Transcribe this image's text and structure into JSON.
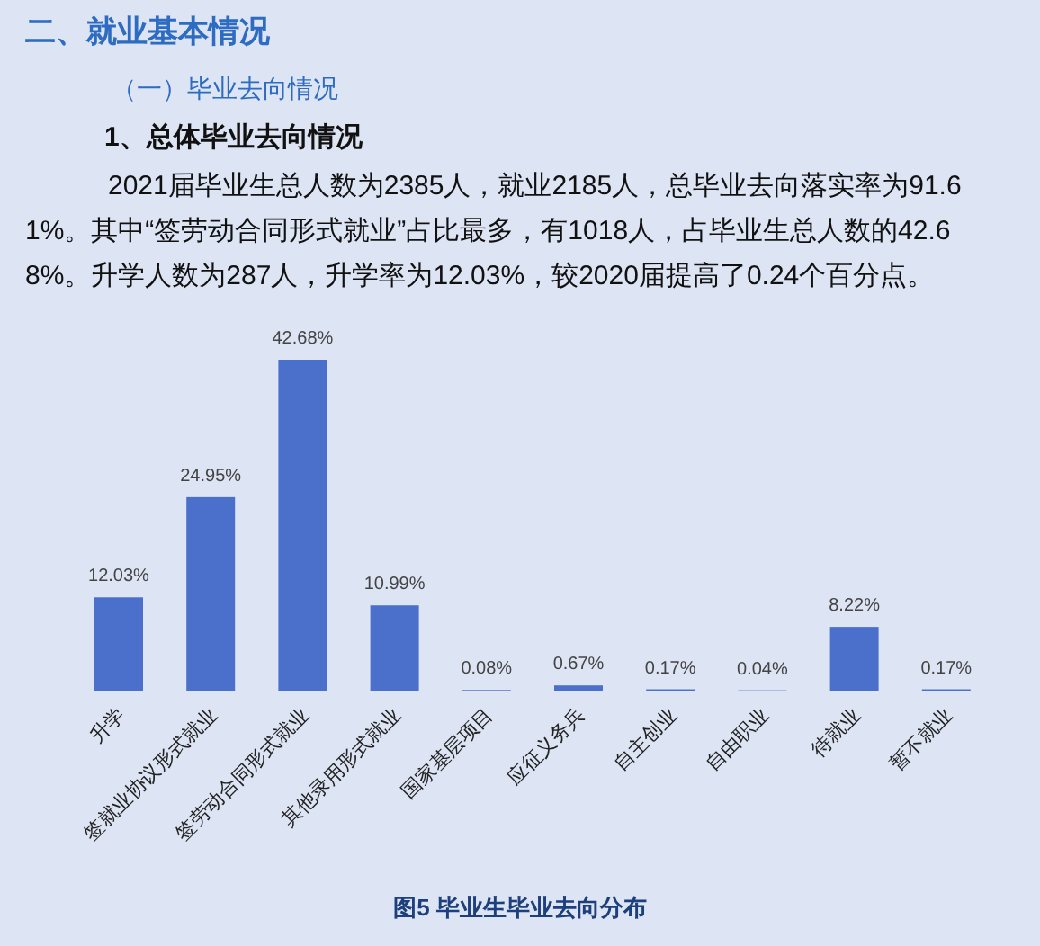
{
  "chart_data": {
    "type": "bar",
    "title": "二、就业基本情况",
    "subtitle": "（一）毕业去向情况",
    "annotations": [
      "1、总体毕业去向情况",
      "2021届毕业生总人数为2385人，就业2185人，总毕业去向落实率为91.61%。其中“签劳动合同形式就业”占比最多，有1018人，占毕业生总人数的42.68%。升学人数为287人，升学率为12.03%，较2020届提高了0.24个百分点。",
      "图5  毕业生毕业去向分布"
    ],
    "categories": [
      "升学",
      "签就业协议形式就业",
      "签劳动合同形式就业",
      "其他录用形式就业",
      "国家基层项目",
      "应征义务兵",
      "自主创业",
      "自由职业",
      "待就业",
      "暂不就业"
    ],
    "values": [
      12.03,
      24.95,
      42.68,
      10.99,
      0.08,
      0.67,
      0.17,
      0.04,
      8.22,
      0.17
    ],
    "value_labels": [
      "12.03%",
      "24.95%",
      "42.68%",
      "10.99%",
      "0.08%",
      "0.67%",
      "0.17%",
      "0.04%",
      "8.22%",
      "0.17%"
    ],
    "color": "#4a70cc"
  }
}
